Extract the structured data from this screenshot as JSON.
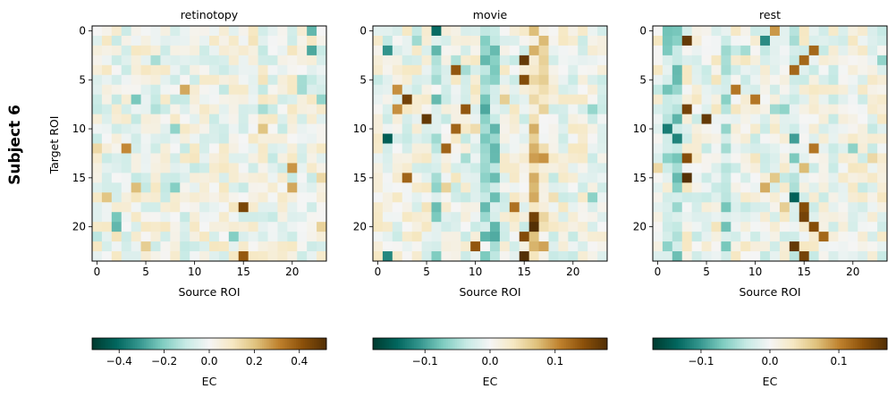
{
  "figure": {
    "row_label": "Subject 6",
    "y_axis_label": "Target ROI",
    "colorbar_label": "EC"
  },
  "chart_data": [
    {
      "type": "heatmap",
      "title": "retinotopy",
      "xlabel": "Source ROI",
      "ylabel": "Target ROI",
      "x_ticks": [
        0,
        5,
        10,
        15,
        20
      ],
      "y_ticks": [
        0,
        5,
        10,
        15,
        20
      ],
      "n_rows": 24,
      "n_cols": 24,
      "color_range": [
        -0.52,
        0.52
      ],
      "colorbar_ticks": [
        -0.4,
        -0.2,
        0.0,
        0.2,
        0.4
      ],
      "colorbar_tick_labels": [
        "−0.4",
        "−0.2",
        "0.0",
        "0.2",
        "0.4"
      ],
      "colorbar_label": "EC",
      "colormap": "BrBG_r",
      "highlights": [
        [
          18,
          15,
          0.45
        ],
        [
          23,
          15,
          0.4
        ],
        [
          12,
          3,
          0.3
        ],
        [
          6,
          9,
          0.25
        ],
        [
          10,
          17,
          0.2
        ],
        [
          0,
          22,
          -0.25
        ],
        [
          2,
          22,
          -0.28
        ],
        [
          20,
          2,
          -0.25
        ],
        [
          19,
          2,
          -0.22
        ],
        [
          16,
          8,
          -0.2
        ],
        [
          14,
          20,
          0.28
        ],
        [
          16,
          20,
          0.25
        ],
        [
          21,
          14,
          -0.2
        ],
        [
          7,
          23,
          -0.18
        ],
        [
          3,
          6,
          -0.15
        ]
      ],
      "seed": 11
    },
    {
      "type": "heatmap",
      "title": "movie",
      "xlabel": "Source ROI",
      "ylabel": "",
      "x_ticks": [
        0,
        5,
        10,
        15,
        20
      ],
      "y_ticks": [
        0,
        5,
        10,
        15,
        20
      ],
      "n_rows": 24,
      "n_cols": 24,
      "color_range": [
        -0.18,
        0.18
      ],
      "colorbar_ticks": [
        -0.1,
        0.0,
        0.1
      ],
      "colorbar_tick_labels": [
        "−0.1",
        "0.0",
        "0.1"
      ],
      "colorbar_label": "EC",
      "colormap": "BrBG_r",
      "highlights": [
        [
          3,
          15,
          0.17
        ],
        [
          5,
          15,
          0.15
        ],
        [
          4,
          8,
          0.14
        ],
        [
          7,
          3,
          0.16
        ],
        [
          9,
          5,
          0.17
        ],
        [
          8,
          9,
          0.14
        ],
        [
          10,
          8,
          0.13
        ],
        [
          15,
          3,
          0.13
        ],
        [
          19,
          16,
          0.16
        ],
        [
          20,
          16,
          0.18
        ],
        [
          21,
          15,
          0.15
        ],
        [
          22,
          10,
          0.14
        ],
        [
          23,
          15,
          0.18
        ],
        [
          0,
          6,
          -0.14
        ],
        [
          11,
          1,
          -0.15
        ],
        [
          23,
          1,
          -0.12
        ],
        [
          2,
          1,
          -0.11
        ],
        [
          18,
          14,
          0.12
        ],
        [
          12,
          7,
          0.13
        ],
        [
          6,
          2,
          0.1
        ],
        [
          8,
          2,
          0.1
        ]
      ],
      "column_bias": {
        "6": -0.05,
        "11": -0.06,
        "12": -0.05,
        "16": 0.05,
        "17": 0.03
      },
      "seed": 23
    },
    {
      "type": "heatmap",
      "title": "rest",
      "xlabel": "Source ROI",
      "ylabel": "",
      "x_ticks": [
        0,
        5,
        10,
        15,
        20
      ],
      "y_ticks": [
        0,
        5,
        10,
        15,
        20
      ],
      "n_rows": 24,
      "n_cols": 24,
      "color_range": [
        -0.17,
        0.17
      ],
      "colorbar_ticks": [
        -0.1,
        0.0,
        0.1
      ],
      "colorbar_tick_labels": [
        "−0.1",
        "0.0",
        "0.1"
      ],
      "colorbar_label": "EC",
      "colormap": "BrBG_r",
      "highlights": [
        [
          1,
          3,
          0.16
        ],
        [
          8,
          3,
          0.15
        ],
        [
          9,
          5,
          0.16
        ],
        [
          15,
          3,
          0.17
        ],
        [
          13,
          3,
          0.14
        ],
        [
          17,
          14,
          -0.14
        ],
        [
          19,
          15,
          0.15
        ],
        [
          20,
          16,
          0.14
        ],
        [
          18,
          15,
          0.14
        ],
        [
          22,
          14,
          0.16
        ],
        [
          21,
          17,
          0.12
        ],
        [
          23,
          15,
          0.15
        ],
        [
          2,
          16,
          0.12
        ],
        [
          6,
          8,
          0.11
        ],
        [
          7,
          10,
          0.11
        ],
        [
          10,
          1,
          -0.12
        ],
        [
          0,
          12,
          0.09
        ],
        [
          4,
          14,
          0.12
        ],
        [
          12,
          16,
          0.11
        ],
        [
          1,
          11,
          -0.11
        ],
        [
          3,
          15,
          0.12
        ]
      ],
      "column_bias": {
        "1": -0.04,
        "2": -0.05,
        "7": -0.04,
        "14": -0.04
      },
      "seed": 37
    }
  ]
}
